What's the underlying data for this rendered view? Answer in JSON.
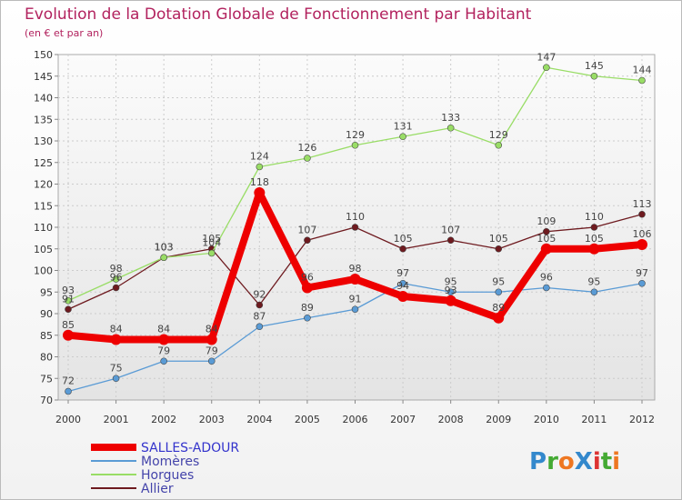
{
  "chart_data": {
    "type": "line",
    "title": "Evolution de la Dotation Globale de Fonctionnement par Habitant",
    "subtitle": "(en € et par an)",
    "x": [
      "2000",
      "2001",
      "2002",
      "2003",
      "2004",
      "2005",
      "2006",
      "2007",
      "2008",
      "2009",
      "2010",
      "2011",
      "2012"
    ],
    "ylim": [
      70,
      150
    ],
    "yticks": [
      70,
      75,
      80,
      85,
      90,
      95,
      100,
      105,
      110,
      115,
      120,
      125,
      130,
      135,
      140,
      145,
      150
    ],
    "grid": true,
    "series": [
      {
        "name": "Allier",
        "color": "#6e1a1f",
        "values": [
          91,
          96,
          103,
          105,
          92,
          107,
          110,
          105,
          107,
          105,
          109,
          110,
          113
        ]
      },
      {
        "name": "Horgues",
        "color": "#99dd66",
        "values": [
          93,
          98,
          103,
          104,
          124,
          126,
          129,
          131,
          133,
          129,
          147,
          145,
          144
        ]
      },
      {
        "name": "Momères",
        "color": "#5a9bd5",
        "values": [
          72,
          75,
          79,
          79,
          87,
          89,
          91,
          97,
          95,
          95,
          96,
          95,
          97
        ]
      },
      {
        "name": "SALLES-ADOUR",
        "color": "#ee0000",
        "values": [
          85,
          84,
          84,
          84,
          118,
          96,
          98,
          94,
          93,
          89,
          105,
          105,
          106
        ]
      }
    ],
    "legend": [
      "SALLES-ADOUR",
      "Momères",
      "Horgues",
      "Allier"
    ],
    "legend_position": "bottom-left"
  },
  "brand": {
    "text": "ProXiti",
    "letters": [
      "P",
      "r",
      "o",
      "X",
      "i",
      "t",
      "i"
    ],
    "colors": [
      "#3388cc",
      "#44aa33",
      "#ee7722",
      "#3388cc",
      "#dd3333",
      "#44aa33",
      "#ee7722"
    ]
  }
}
